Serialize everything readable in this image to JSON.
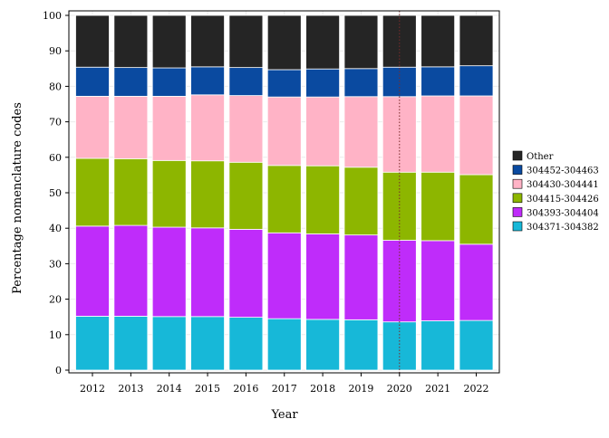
{
  "chart_data": {
    "type": "bar",
    "stacked": true,
    "title": "",
    "xlabel": "Year",
    "ylabel": "Percentage nomenclature codes",
    "ylim": [
      0,
      100
    ],
    "yticks": [
      0,
      10,
      20,
      30,
      40,
      50,
      60,
      70,
      80,
      90,
      100
    ],
    "grid": true,
    "legend_position": "right",
    "categories": [
      "2012",
      "2013",
      "2014",
      "2015",
      "2016",
      "2017",
      "2018",
      "2019",
      "2020",
      "2021",
      "2022"
    ],
    "reference_line": {
      "category": "2020",
      "style": "dotted",
      "color": "#7a2a2a"
    },
    "series": [
      {
        "name": "304371-304382",
        "color": "#17b8d8",
        "values": [
          15.2,
          15.2,
          15.1,
          15.1,
          14.9,
          14.5,
          14.3,
          14.2,
          13.6,
          13.9,
          14.0
        ]
      },
      {
        "name": "304393-304404",
        "color": "#bf2cfa",
        "values": [
          25.4,
          25.6,
          25.2,
          25.0,
          24.8,
          24.2,
          24.1,
          23.9,
          23.0,
          22.6,
          21.5
        ]
      },
      {
        "name": "304415-304426",
        "color": "#8db600",
        "values": [
          19.1,
          18.8,
          18.8,
          18.9,
          18.9,
          19.0,
          19.2,
          19.1,
          19.2,
          19.3,
          19.6
        ]
      },
      {
        "name": "304430-304441",
        "color": "#ffb3c6",
        "values": [
          17.5,
          17.6,
          18.1,
          18.6,
          18.8,
          19.3,
          19.4,
          19.9,
          21.3,
          21.5,
          22.2
        ]
      },
      {
        "name": "304452-304463",
        "color": "#0a4aa0",
        "values": [
          8.2,
          8.1,
          8.0,
          7.9,
          7.9,
          7.7,
          7.9,
          7.9,
          8.3,
          8.2,
          8.5
        ]
      },
      {
        "name": "Other",
        "color": "#252525",
        "values": [
          14.6,
          14.7,
          14.8,
          14.5,
          14.7,
          15.3,
          15.1,
          15.0,
          14.6,
          14.5,
          14.2
        ]
      }
    ],
    "legend_order": [
      "Other",
      "304452-304463",
      "304430-304441",
      "304415-304426",
      "304393-304404",
      "304371-304382"
    ]
  }
}
